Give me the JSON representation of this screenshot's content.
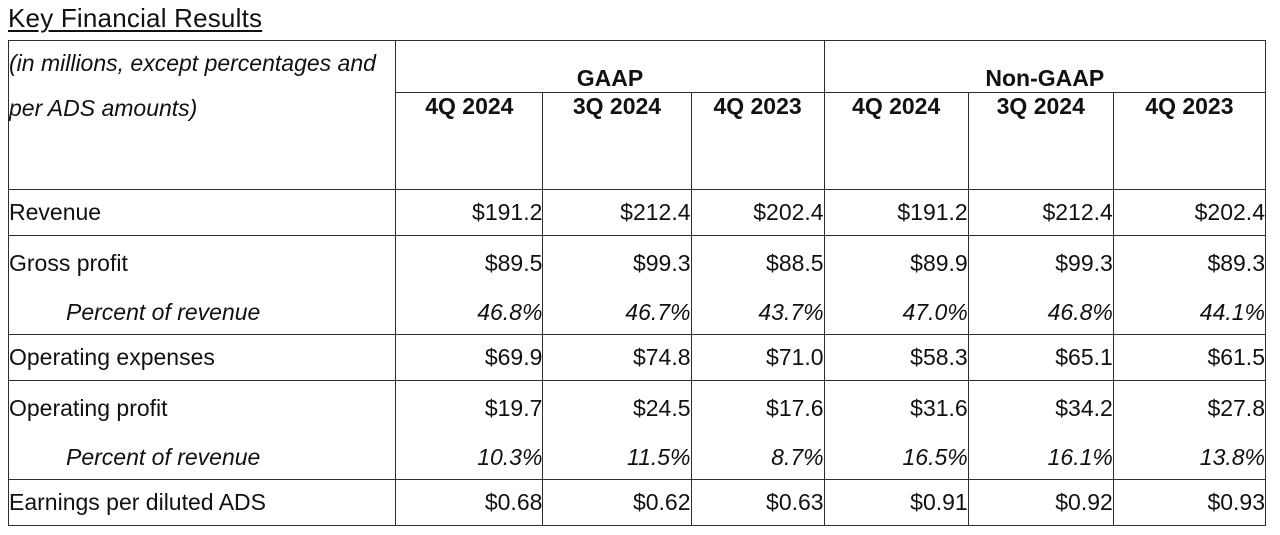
{
  "page": {
    "title": "Key Financial Results"
  },
  "table": {
    "corner_note": "(in millions, except percentages and per ADS amounts)",
    "column_groups": [
      {
        "label": "GAAP",
        "columns": [
          "4Q 2024",
          "3Q 2024",
          "4Q 2023"
        ]
      },
      {
        "label": "Non-GAAP",
        "columns": [
          "4Q 2024",
          "3Q 2024",
          "4Q 2023"
        ]
      }
    ],
    "rows": [
      {
        "label": "Revenue",
        "type": "main",
        "separator_after": true,
        "values": [
          "$191.2",
          "$212.4",
          "$202.4",
          "$191.2",
          "$212.4",
          "$202.4"
        ]
      },
      {
        "label": "Gross profit",
        "type": "main",
        "separator_after": false,
        "values": [
          "$89.5",
          "$99.3",
          "$88.5",
          "$89.9",
          "$99.3",
          "$89.3"
        ]
      },
      {
        "label": "Percent of revenue",
        "type": "sub",
        "separator_after": true,
        "values": [
          "46.8%",
          "46.7%",
          "43.7%",
          "47.0%",
          "46.8%",
          "44.1%"
        ]
      },
      {
        "label": "Operating expenses",
        "type": "main",
        "separator_after": true,
        "values": [
          "$69.9",
          "$74.8",
          "$71.0",
          "$58.3",
          "$65.1",
          "$61.5"
        ]
      },
      {
        "label": "Operating profit",
        "type": "main",
        "separator_after": false,
        "values": [
          "$19.7",
          "$24.5",
          "$17.6",
          "$31.6",
          "$34.2",
          "$27.8"
        ]
      },
      {
        "label": "Percent of revenue",
        "type": "sub",
        "separator_after": true,
        "values": [
          "10.3%",
          "11.5%",
          "8.7%",
          "16.5%",
          "16.1%",
          "13.8%"
        ]
      },
      {
        "label": "Earnings per diluted ADS",
        "type": "main",
        "separator_after": true,
        "values": [
          "$0.68",
          "$0.62",
          "$0.63",
          "$0.91",
          "$0.92",
          "$0.93"
        ]
      }
    ]
  },
  "colors": {
    "text": "#111111",
    "border": "#2e2e2e",
    "background": "#ffffff"
  }
}
